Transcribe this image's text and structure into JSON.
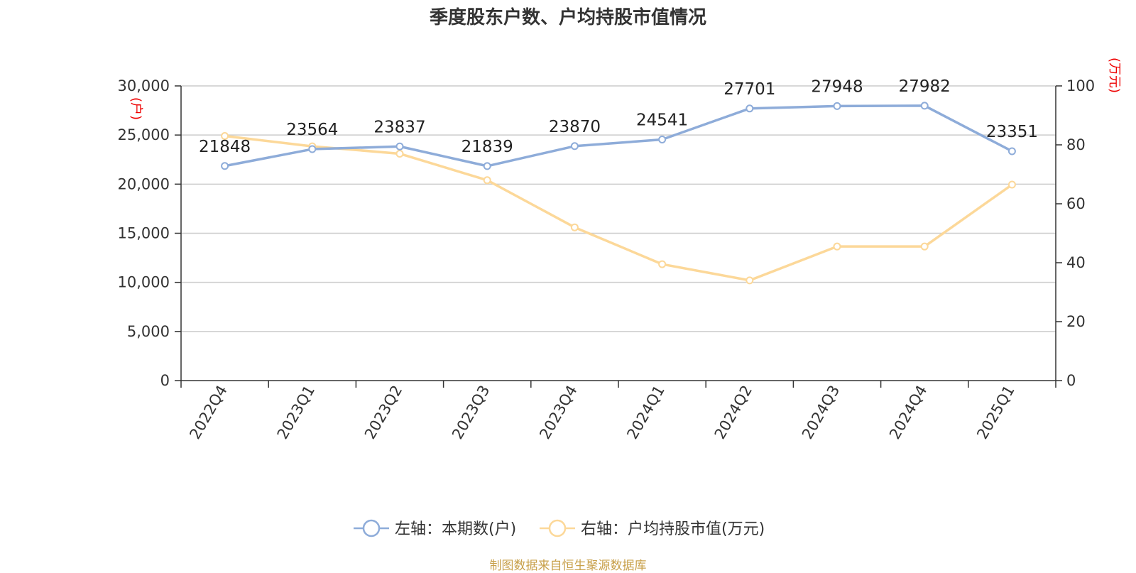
{
  "chart_data": {
    "type": "line",
    "title": "季度股东户数、户均持股市值情况",
    "categories": [
      "2022Q4",
      "2023Q1",
      "2023Q2",
      "2023Q3",
      "2023Q4",
      "2024Q1",
      "2024Q2",
      "2024Q3",
      "2024Q4",
      "2025Q1"
    ],
    "left_axis": {
      "unit_label": "(户)",
      "ylim": [
        0,
        30000
      ],
      "ticks": [
        "0",
        "5,000",
        "10,000",
        "15,000",
        "20,000",
        "25,000",
        "30,000"
      ]
    },
    "right_axis": {
      "unit_label": "(万元)",
      "ylim": [
        0,
        100
      ],
      "ticks": [
        "0",
        "20",
        "40",
        "60",
        "80",
        "100"
      ]
    },
    "series": [
      {
        "name": "左轴：本期数(户)",
        "axis": "left",
        "color": "#8eacd9",
        "values": [
          21848,
          23564,
          23837,
          21839,
          23870,
          24541,
          27701,
          27948,
          27982,
          23351
        ],
        "labels": [
          "21848",
          "23564",
          "23837",
          "21839",
          "23870",
          "24541",
          "27701",
          "27948",
          "27982",
          "23351"
        ]
      },
      {
        "name": "右轴：户均持股市值(万元)",
        "axis": "right",
        "color": "#fcd899",
        "values": [
          83.0,
          79.5,
          77.0,
          68.0,
          52.0,
          39.5,
          34.0,
          45.5,
          45.5,
          66.5
        ]
      }
    ],
    "grid": true,
    "legend_position": "bottom",
    "source": "制图数据来自恒生聚源数据库"
  }
}
